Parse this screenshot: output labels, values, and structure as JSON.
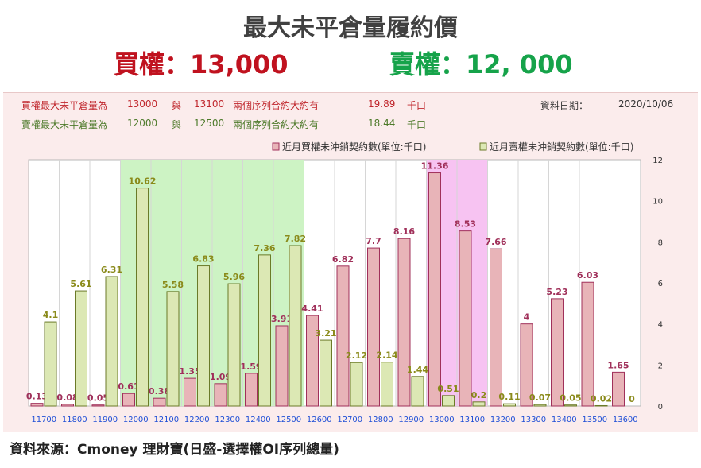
{
  "title": "最大未平倉量履約價",
  "headline": {
    "call": "買權：13,000",
    "put": "賣權：12, 000"
  },
  "info": {
    "call_row": {
      "label": "買權最大未平倉量為",
      "strike_low": "13000",
      "and": "與",
      "strike_high": "13100",
      "desc": "兩個序列合約大約有",
      "amount": "19.89",
      "unit": "千口"
    },
    "put_row": {
      "label": "賣權最大未平倉量為",
      "strike_low": "12000",
      "and": "與",
      "strike_high": "12500",
      "desc": "兩個序列合約大約有",
      "amount": "18.44",
      "unit": "千口"
    },
    "date_label": "資料日期：",
    "date_value": "2020/10/06"
  },
  "source": "資料來源：Cmoney 理財寶(日盛-選擇權OI序列總量)",
  "colors": {
    "call_bar": "#e8b4b8",
    "call_edge": "#a0305a",
    "put_bar": "#dce8b4",
    "put_edge": "#6b7a28",
    "call_label": "#a0305a",
    "put_label": "#8a8a1a",
    "green_band": "#cdf3c4",
    "pink_band": "#f7c3f2",
    "tick_label": "#1f4fd6"
  },
  "chart_data": {
    "type": "bar",
    "categories": [
      "11700",
      "11800",
      "11900",
      "12000",
      "12100",
      "12200",
      "12300",
      "12400",
      "12500",
      "12600",
      "12700",
      "12800",
      "12900",
      "13000",
      "13100",
      "13200",
      "13300",
      "13400",
      "13500",
      "13600"
    ],
    "series": [
      {
        "name": "近月買權未沖銷契約數(單位:千口)",
        "values": [
          0.13,
          0.08,
          0.05,
          0.61,
          0.38,
          1.35,
          1.09,
          1.59,
          3.91,
          4.41,
          6.82,
          7.7,
          8.16,
          11.36,
          8.53,
          7.66,
          4,
          5.23,
          6.03,
          1.65
        ]
      },
      {
        "name": "近月賣權未沖銷契約數(單位:千口)",
        "values": [
          4.1,
          5.61,
          6.31,
          10.62,
          5.58,
          6.83,
          5.96,
          7.36,
          7.82,
          3.21,
          2.12,
          2.14,
          1.44,
          0.51,
          0.2,
          0.11,
          0.07,
          0.05,
          0.02,
          0
        ]
      }
    ],
    "y_axis": "right",
    "y_ticks": [
      "0",
      "2",
      "4",
      "6",
      "8",
      "10",
      "12"
    ],
    "ylim": [
      0,
      12
    ],
    "highlight_bands": [
      {
        "from": "12000",
        "to": "12500",
        "color": "green"
      },
      {
        "from": "13000",
        "to": "13100",
        "color": "pink"
      }
    ],
    "legend_position": "top-right",
    "grid": "vertical"
  }
}
